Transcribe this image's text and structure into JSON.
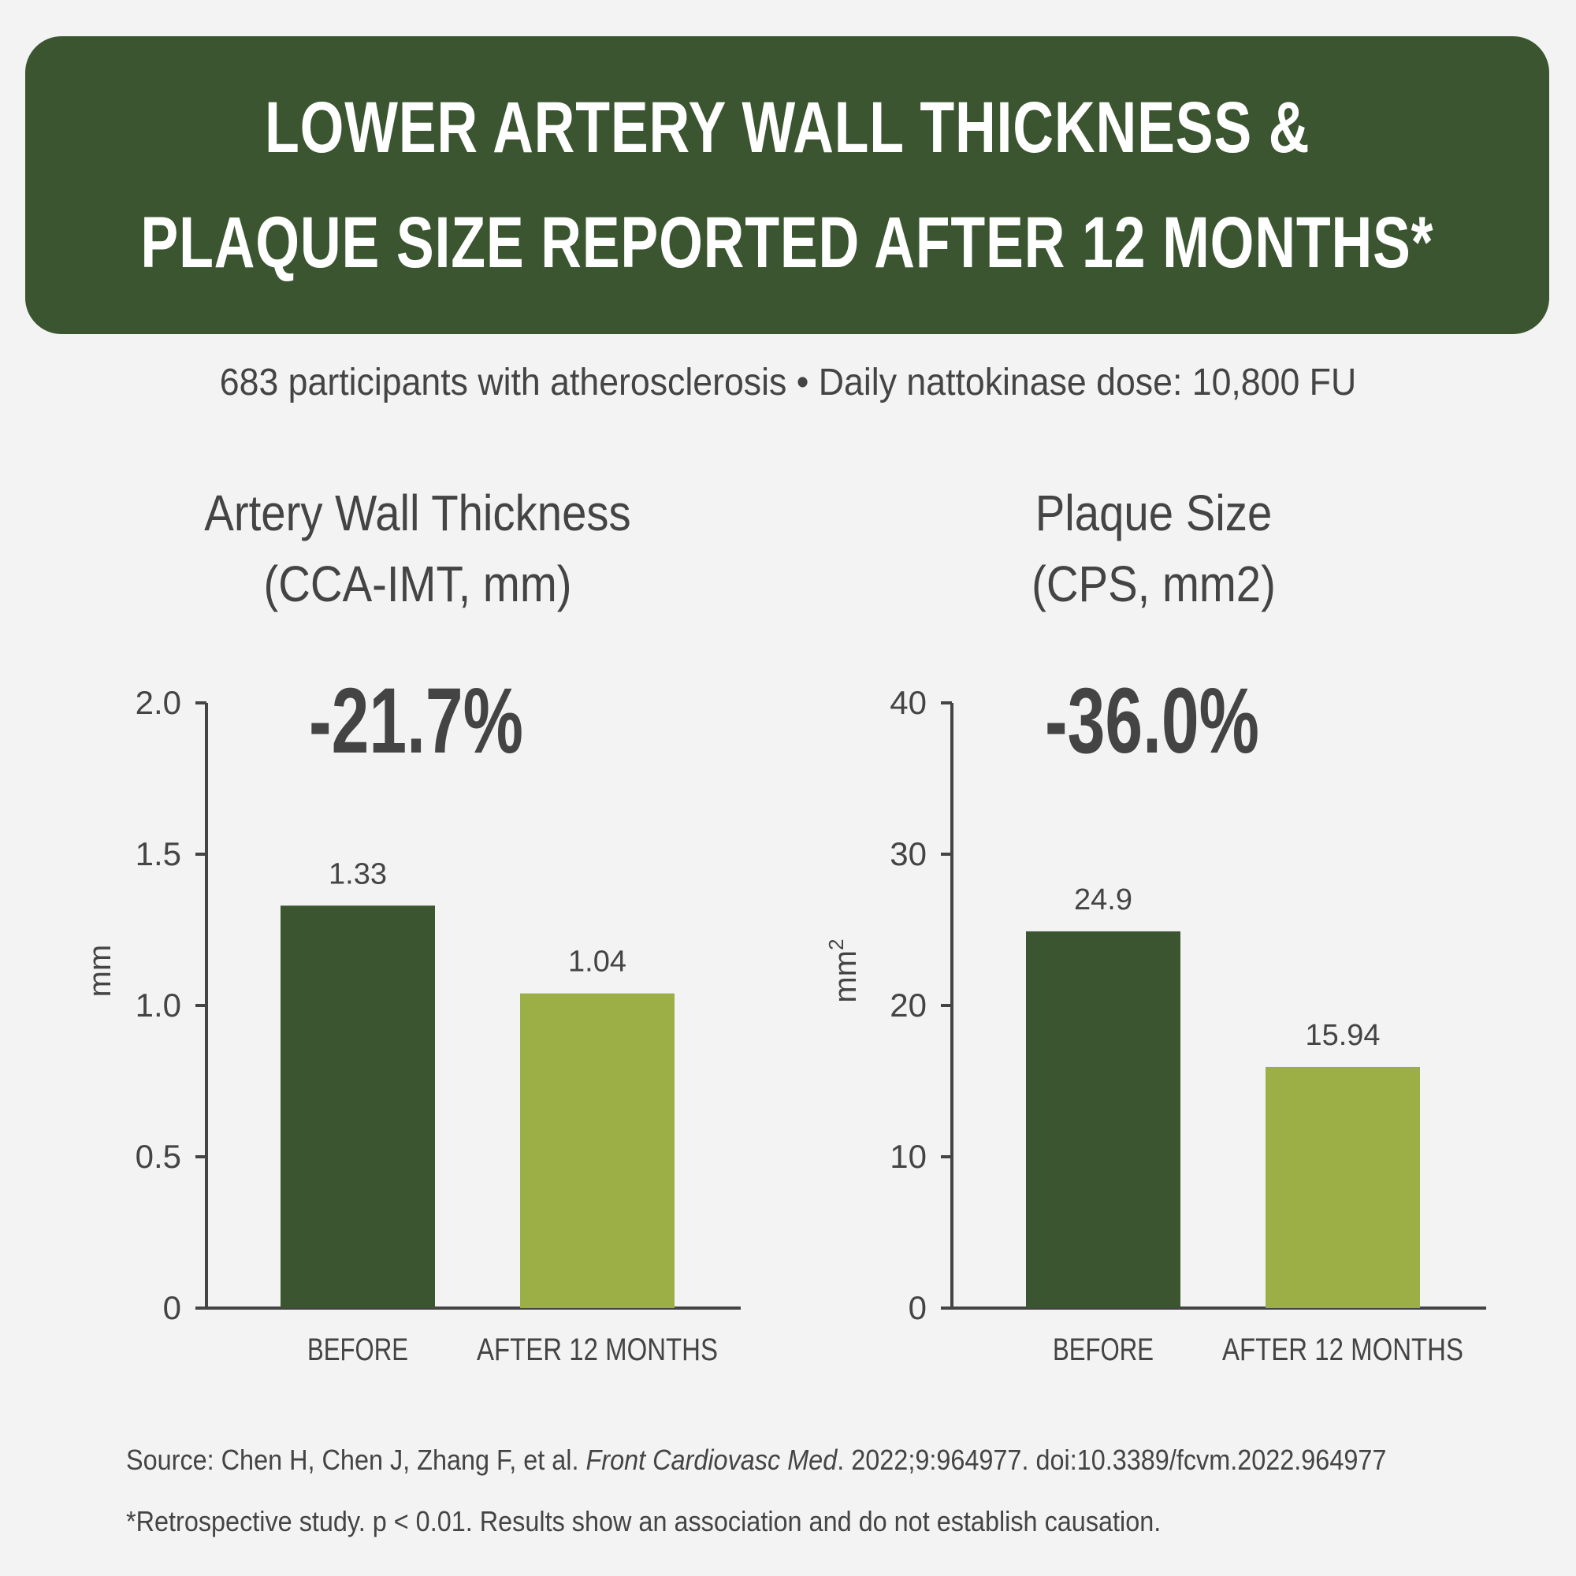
{
  "header": {
    "title_line1": "LOWER ARTERY WALL THICKNESS &",
    "title_line2": "PLAQUE SIZE REPORTED AFTER 12 MONTHS*",
    "background_color": "#3a5530"
  },
  "subtitle": "683 participants with atherosclerosis • Daily nattokinase dose: 10,800 FU",
  "colors": {
    "before": "#3a5530",
    "after": "#9caf47",
    "axis": "#444444"
  },
  "chart_data": [
    {
      "type": "bar",
      "title_line1": "Artery Wall Thickness",
      "title_line2": "(CCA-IMT, mm)",
      "change_label": "-21.7%",
      "categories": [
        "BEFORE",
        "AFTER 12 MONTHS"
      ],
      "values": [
        1.33,
        1.04
      ],
      "value_labels": [
        "1.33",
        "1.04"
      ],
      "ylabel": "mm",
      "ylim": [
        0,
        2.0
      ],
      "yticks": [
        0,
        0.5,
        1.0,
        1.5,
        2.0
      ],
      "ytick_labels": [
        "0",
        "0.5",
        "1.0",
        "1.5",
        "2.0"
      ],
      "grid": false
    },
    {
      "type": "bar",
      "title_line1": "Plaque Size",
      "title_line2": "(CPS, mm2)",
      "change_label": "-36.0%",
      "categories": [
        "BEFORE",
        "AFTER 12 MONTHS"
      ],
      "values": [
        24.9,
        15.94
      ],
      "value_labels": [
        "24.9",
        "15.94"
      ],
      "ylabel": "mm",
      "ylabel_superscript": "2",
      "ylim": [
        0,
        40
      ],
      "yticks": [
        0,
        10,
        20,
        30,
        40
      ],
      "ytick_labels": [
        "0",
        "10",
        "20",
        "30",
        "40"
      ],
      "grid": false
    }
  ],
  "footer": {
    "source_prefix": "Source: Chen H, Chen J, Zhang F, et al. ",
    "source_journal": "Front Cardiovasc Med",
    "source_suffix": ". 2022;9:964977. doi:10.3389/fcvm.2022.964977",
    "note": "*Retrospective study. p < 0.01. Results show an association and do not establish causation."
  }
}
